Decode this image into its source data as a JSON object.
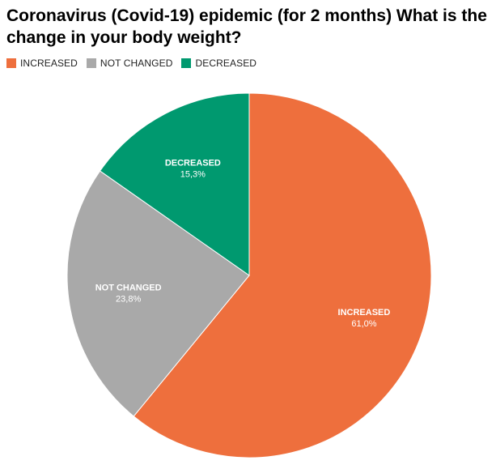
{
  "chart_data": {
    "type": "pie",
    "title": "Coronavirus (Covid-19) epidemic (for 2 months) What is the change in your body weight?",
    "legend_position": "top-left",
    "slices": [
      {
        "name": "INCREASED",
        "value": 61.0,
        "value_label": "61,0%",
        "color": "#ee6f3d"
      },
      {
        "name": "NOT CHANGED",
        "value": 23.8,
        "value_label": "23,8%",
        "color": "#a9a9a9"
      },
      {
        "name": "DECREASED",
        "value": 15.3,
        "value_label": "15,3%",
        "color": "#00996f"
      }
    ]
  }
}
